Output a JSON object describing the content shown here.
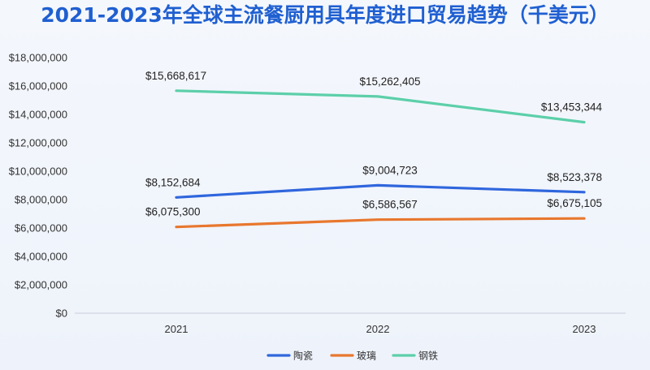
{
  "chart_data": {
    "type": "line",
    "title": "2021-2023年全球主流餐厨用具年度进口贸易趋势（千美元）",
    "x": [
      "2021",
      "2022",
      "2023"
    ],
    "xlabel": "",
    "ylabel": "",
    "ylim": [
      0,
      18000000
    ],
    "yticks": [
      "$0",
      "$2,000,000",
      "$4,000,000",
      "$6,000,000",
      "$8,000,000",
      "$10,000,000",
      "$12,000,000",
      "$14,000,000",
      "$16,000,000",
      "$18,000,000"
    ],
    "grid": false,
    "legend_position": "bottom",
    "series": [
      {
        "name": "陶瓷",
        "color": "#2f66dd",
        "values": [
          8152684,
          9004723,
          8523378
        ],
        "labels": [
          "$8,152,684",
          "$9,004,723",
          "$8,523,378"
        ]
      },
      {
        "name": "玻璃",
        "color": "#e8772e",
        "values": [
          6075300,
          6586567,
          6675105
        ],
        "labels": [
          "$6,075,300",
          "$6,586,567",
          "$6,675,105"
        ]
      },
      {
        "name": "钢铁",
        "color": "#5ccfa9",
        "values": [
          15668617,
          15262405,
          13453344
        ],
        "labels": [
          "$15,668,617",
          "$15,262,405",
          "$13,453,344"
        ]
      }
    ]
  }
}
